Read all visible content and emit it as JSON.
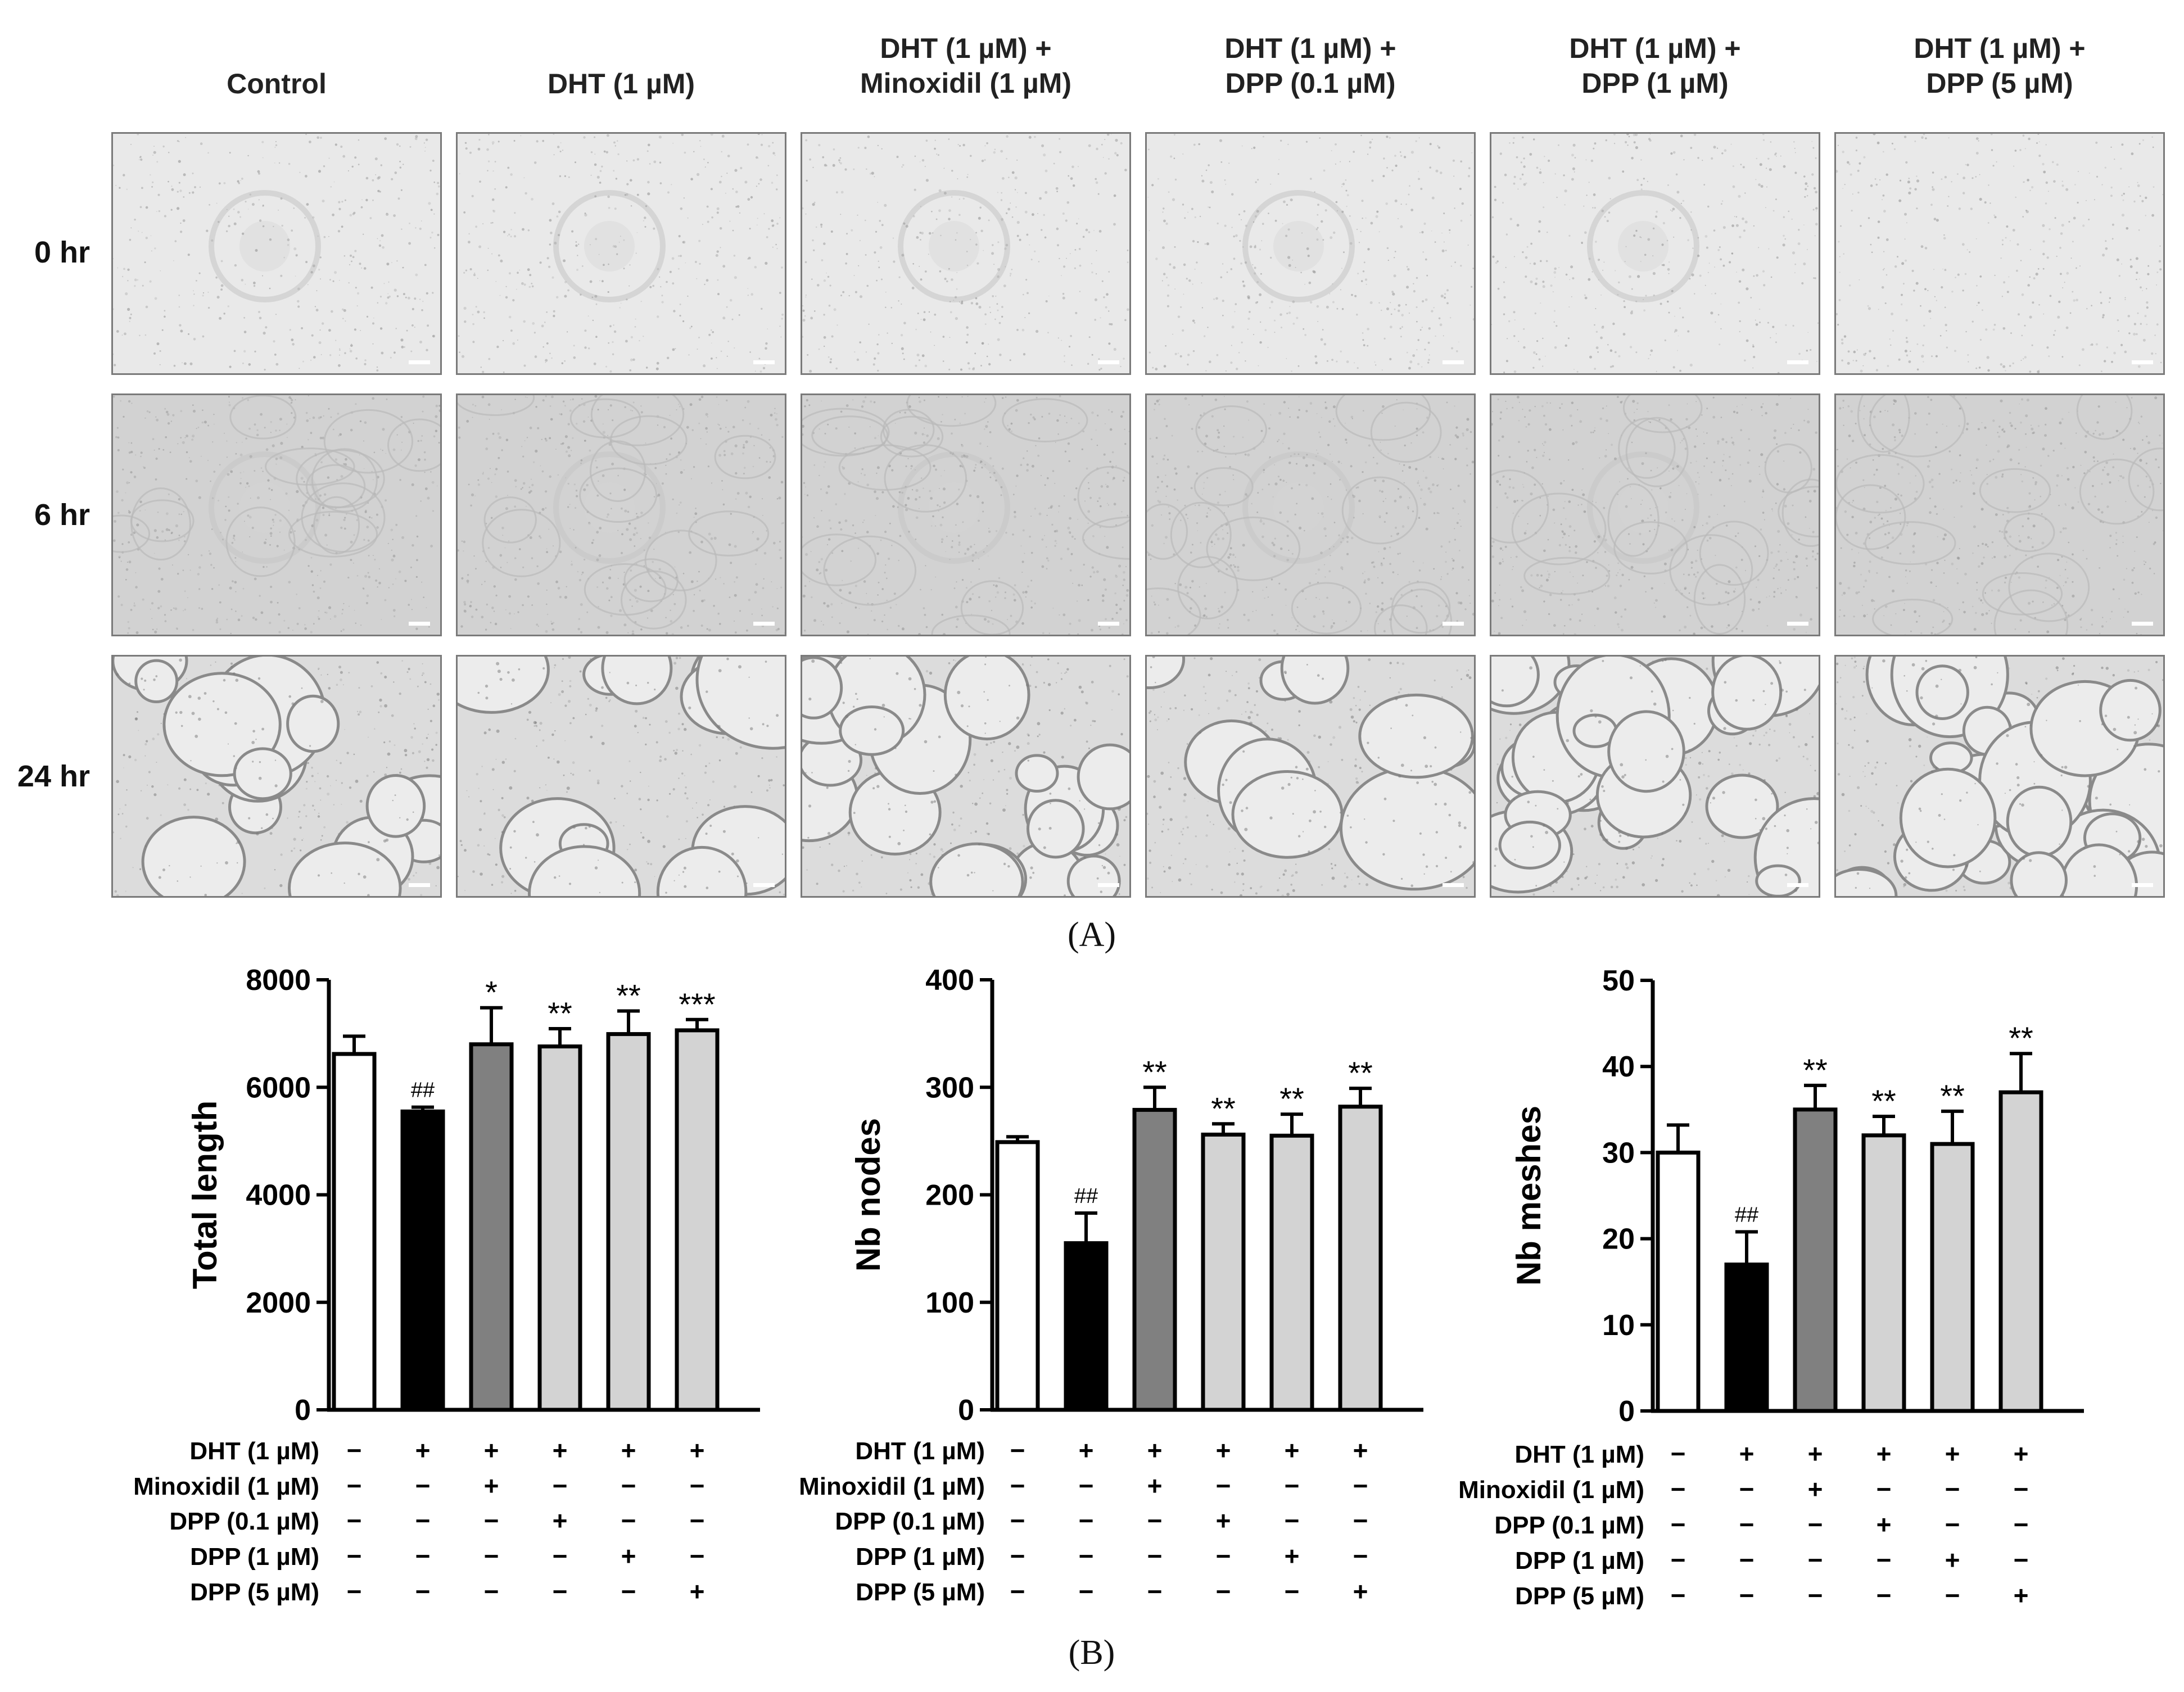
{
  "panel_a": {
    "columns": [
      "Control",
      "DHT (1 µM)",
      "DHT (1 µM) +\nMinoxidil (1 µM)",
      "DHT (1 µM) +\nDPP (0.1 µM)",
      "DHT (1 µM) +\nDPP (1 µM)",
      "DHT (1 µM) +\nDPP (5 µM)"
    ],
    "rows": [
      "0 hr",
      "6 hr",
      "24 hr"
    ],
    "label": "(A)"
  },
  "panel_b": {
    "label": "(B)",
    "condition_rows": [
      "DHT (1 µM)",
      "Minoxidil (1 µM)",
      "DPP (0.1 µM)",
      "DPP (1 µM)",
      "DPP (5 µM)"
    ],
    "condition_matrix": [
      [
        "−",
        "+",
        "+",
        "+",
        "+",
        "+"
      ],
      [
        "−",
        "−",
        "+",
        "−",
        "−",
        "−"
      ],
      [
        "−",
        "−",
        "−",
        "+",
        "−",
        "−"
      ],
      [
        "−",
        "−",
        "−",
        "−",
        "+",
        "−"
      ],
      [
        "−",
        "−",
        "−",
        "−",
        "−",
        "+"
      ]
    ],
    "bar_colors": [
      "#ffffff",
      "#000000",
      "#808080",
      "#d3d3d3",
      "#d3d3d3",
      "#d3d3d3"
    ]
  },
  "chart_data": [
    {
      "type": "bar",
      "ylabel": "Total length",
      "ylim": [
        0,
        8000
      ],
      "yticks": [
        0,
        2000,
        4000,
        6000,
        8000
      ],
      "values": [
        6620,
        5550,
        6800,
        6760,
        6990,
        7060
      ],
      "errors": [
        330,
        80,
        680,
        330,
        430,
        200
      ],
      "annotations": [
        "",
        "##",
        "*",
        "**",
        "**",
        "***"
      ]
    },
    {
      "type": "bar",
      "ylabel": "Nb nodes",
      "ylim": [
        0,
        400
      ],
      "yticks": [
        0,
        100,
        200,
        300,
        400
      ],
      "values": [
        249,
        155,
        279,
        256,
        255,
        282
      ],
      "errors": [
        5,
        28,
        21,
        10,
        20,
        17
      ],
      "annotations": [
        "",
        "##",
        "**",
        "**",
        "**",
        "**"
      ]
    },
    {
      "type": "bar",
      "ylabel": "Nb meshes",
      "ylim": [
        0,
        50
      ],
      "yticks": [
        0,
        10,
        20,
        30,
        40,
        50
      ],
      "values": [
        30,
        17,
        35,
        32,
        31,
        37
      ],
      "errors": [
        3.2,
        3.8,
        2.8,
        2.2,
        3.8,
        4.5
      ],
      "annotations": [
        "",
        "##",
        "**",
        "**",
        "**",
        "**"
      ]
    }
  ]
}
